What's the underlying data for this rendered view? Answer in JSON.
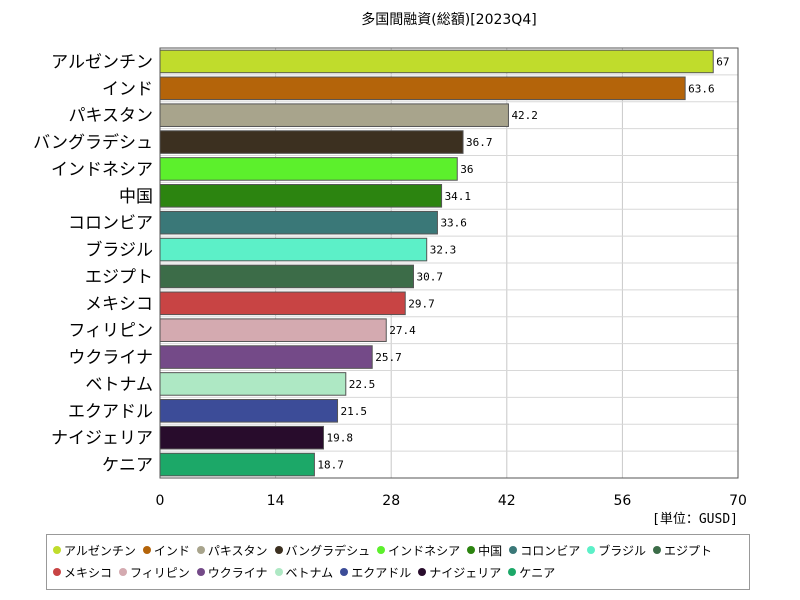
{
  "chart_data": {
    "type": "bar",
    "orientation": "horizontal",
    "title": "多国間融資(総額)[2023Q4]",
    "unit_label": "[単位：GUSD]",
    "xlim": [
      0,
      70
    ],
    "xticks": [
      0,
      14,
      28,
      42,
      56,
      70
    ],
    "grid": true,
    "legend_position": "bottom",
    "categories": [
      "アルゼンチン",
      "インド",
      "パキスタン",
      "バングラデシュ",
      "インドネシア",
      "中国",
      "コロンビア",
      "ブラジル",
      "エジプト",
      "メキシコ",
      "フィリピン",
      "ウクライナ",
      "ベトナム",
      "エクアドル",
      "ナイジェリア",
      "ケニア"
    ],
    "values": [
      67,
      63.6,
      42.2,
      36.7,
      36,
      34.1,
      33.6,
      32.3,
      30.7,
      29.7,
      27.4,
      25.7,
      22.5,
      21.5,
      19.8,
      18.7
    ],
    "value_labels": [
      "67",
      "63.6",
      "42.2",
      "36.7",
      "36",
      "34.1",
      "33.6",
      "32.3",
      "30.7",
      "29.7",
      "27.4",
      "25.7",
      "22.5",
      "21.5",
      "19.8",
      "18.7"
    ],
    "colors": [
      "#c0dc2c",
      "#b4640a",
      "#a8a48c",
      "#3c3020",
      "#5cf02c",
      "#2c8410",
      "#3a7878",
      "#5cf0c8",
      "#3c6c48",
      "#c84444",
      "#d4aab0",
      "#744a88",
      "#aee8c4",
      "#3c4c98",
      "#280c2c",
      "#1ca868"
    ]
  }
}
